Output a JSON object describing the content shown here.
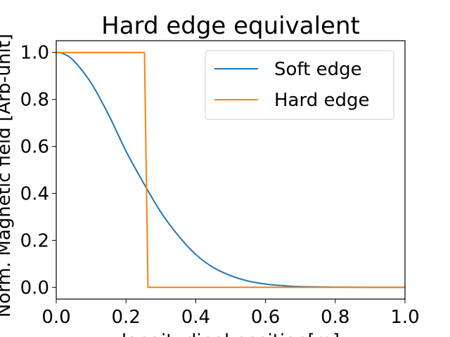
{
  "chart_data": {
    "type": "line",
    "title": "Hard edge equivalent",
    "xlabel": "longitudinal position[m]",
    "ylabel": "Norm. Magnetic field [Arb-unit]",
    "xlim": [
      0.0,
      1.0
    ],
    "ylim": [
      -0.05,
      1.05
    ],
    "xticks": [
      "0.0",
      "0.2",
      "0.4",
      "0.6",
      "0.8",
      "1.0"
    ],
    "yticks": [
      "0.0",
      "0.2",
      "0.4",
      "0.6",
      "0.8",
      "1.0"
    ],
    "grid": false,
    "legend_position": "upper right",
    "series": [
      {
        "name": "Soft edge",
        "color": "#1f77b4",
        "x": [
          0.0,
          0.02,
          0.05,
          0.1,
          0.15,
          0.2,
          0.25,
          0.3,
          0.35,
          0.4,
          0.45,
          0.5,
          0.55,
          0.6,
          0.65,
          0.7,
          0.8,
          0.9,
          1.0
        ],
        "y": [
          1.0,
          0.995,
          0.965,
          0.87,
          0.735,
          0.58,
          0.445,
          0.32,
          0.22,
          0.14,
          0.085,
          0.05,
          0.027,
          0.014,
          0.007,
          0.003,
          0.001,
          0.0,
          0.0
        ]
      },
      {
        "name": "Hard edge",
        "color": "#ff7f0e",
        "x": [
          0.0,
          0.253,
          0.263,
          1.0
        ],
        "y": [
          1.0,
          1.0,
          0.0,
          0.0
        ]
      }
    ]
  }
}
